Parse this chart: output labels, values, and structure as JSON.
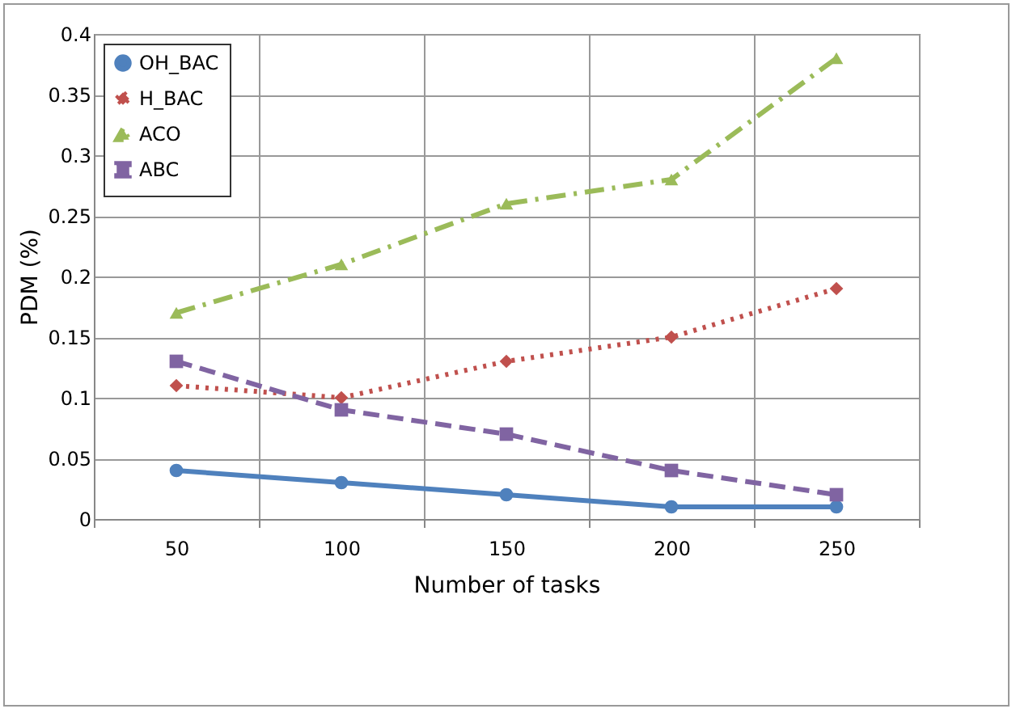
{
  "chart_data": {
    "type": "line",
    "xlabel": "Number of tasks",
    "ylabel": "PDM (%)",
    "categories": [
      "50",
      "100",
      "150",
      "200",
      "250"
    ],
    "series": [
      {
        "name": "OH_BAC",
        "color": "#4f81bd",
        "marker": "circle",
        "line_style": "solid",
        "values": [
          0.04,
          0.03,
          0.02,
          0.01,
          0.01
        ]
      },
      {
        "name": "H_BAC",
        "color": "#c0504d",
        "marker": "diamond",
        "line_style": "dotted",
        "values": [
          0.11,
          0.1,
          0.13,
          0.15,
          0.19
        ]
      },
      {
        "name": "ACO",
        "color": "#9bbb59",
        "marker": "triangle",
        "line_style": "dashdot",
        "values": [
          0.17,
          0.21,
          0.26,
          0.28,
          0.38
        ]
      },
      {
        "name": "ABC",
        "color": "#8064a2",
        "marker": "square",
        "line_style": "dashed",
        "values": [
          0.13,
          0.09,
          0.07,
          0.04,
          0.02
        ]
      }
    ],
    "ylim": [
      0,
      0.4
    ],
    "yticks": [
      0,
      0.05,
      0.1,
      0.15,
      0.2,
      0.25,
      0.3,
      0.35,
      0.4
    ],
    "grid": true,
    "legend": "top left"
  }
}
